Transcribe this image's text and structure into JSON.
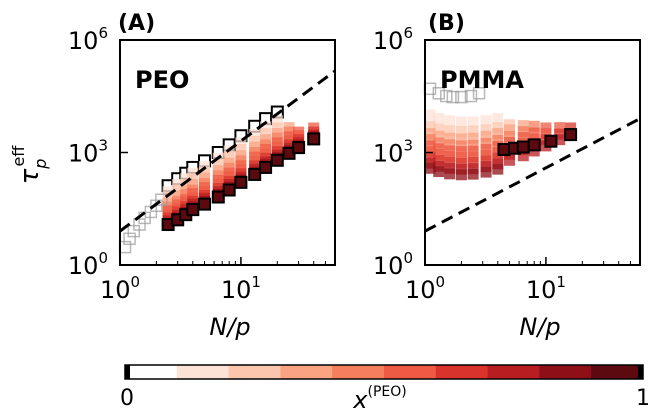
{
  "figure": {
    "colorbar": {
      "label_base": "x",
      "label_sup": "(PEO)",
      "tick_min": "0",
      "tick_max": "1",
      "colors": [
        "#ffffff",
        "#fde2d6",
        "#fcc6ae",
        "#f9a383",
        "#f57e5e",
        "#ee5a43",
        "#d8342b",
        "#b81d22",
        "#8e0f17",
        "#5c0a10"
      ]
    },
    "axis_common": {
      "xlabel_base": "N/p",
      "ylabel_base": "τ",
      "ylabel_sub": "p",
      "ylabel_sup": "eff"
    }
  },
  "chart_data": [
    {
      "type": "scatter",
      "panel": "(A)",
      "title": "PEO",
      "xlabel": "N/p",
      "ylabel": "τ_p^eff",
      "xscale": "log",
      "yscale": "log",
      "xlim": [
        1,
        60
      ],
      "ylim": [
        1,
        1000000
      ],
      "xticks": [
        {
          "value": 1,
          "base": "10",
          "exp": "0"
        },
        {
          "value": 10,
          "base": "10",
          "exp": "1"
        }
      ],
      "yticks": [
        {
          "value": 1,
          "base": "10",
          "exp": "0"
        },
        {
          "value": 1000,
          "base": "10",
          "exp": "3"
        },
        {
          "value": 1000000,
          "base": "10",
          "exp": "6"
        }
      ],
      "reference_line": {
        "style": "dashed",
        "points": [
          [
            1,
            8
          ],
          [
            60,
            150000
          ]
        ]
      },
      "series": [
        {
          "name": "x(PEO)=0.0",
          "x_PEO": 0.0,
          "outlined": true,
          "x": [
            2.5,
            3,
            3.5,
            4,
            5,
            6.5,
            8,
            10,
            13,
            16,
            20
          ],
          "y": [
            130,
            200,
            280,
            400,
            600,
            1000,
            1600,
            2800,
            5000,
            8000,
            12000
          ]
        },
        {
          "name": "x(PEO)=0.1",
          "x_PEO": 0.1,
          "outlined": false,
          "x": [
            2.5,
            3,
            3.5,
            4,
            5,
            6.5,
            8,
            10,
            13,
            16,
            20
          ],
          "y": [
            90,
            140,
            200,
            280,
            420,
            700,
            1100,
            1800,
            3000,
            4800,
            7000
          ]
        },
        {
          "name": "x(PEO)=0.2",
          "x_PEO": 0.2,
          "outlined": false,
          "x": [
            2.5,
            3,
            3.5,
            4,
            5,
            6.5,
            8,
            10,
            13,
            16,
            20
          ],
          "y": [
            65,
            100,
            140,
            200,
            300,
            480,
            750,
            1200,
            2000,
            3200,
            4500
          ]
        },
        {
          "name": "x(PEO)=0.3",
          "x_PEO": 0.3,
          "outlined": false,
          "x": [
            2.5,
            3,
            3.5,
            4,
            5,
            6.5,
            8,
            10,
            13,
            16,
            20,
            25
          ],
          "y": [
            45,
            70,
            100,
            140,
            210,
            330,
            520,
            820,
            1400,
            2200,
            3200,
            4600
          ]
        },
        {
          "name": "x(PEO)=0.4",
          "x_PEO": 0.4,
          "outlined": false,
          "x": [
            2.5,
            3,
            3.5,
            4,
            5,
            6.5,
            8,
            10,
            13,
            16,
            20,
            25
          ],
          "y": [
            35,
            50,
            75,
            100,
            150,
            240,
            380,
            600,
            1000,
            1600,
            2400,
            3500
          ]
        },
        {
          "name": "x(PEO)=0.5",
          "x_PEO": 0.5,
          "outlined": false,
          "x": [
            2.5,
            3,
            3.5,
            4,
            5,
            6.5,
            8,
            10,
            13,
            16,
            20,
            25,
            30
          ],
          "y": [
            28,
            40,
            55,
            80,
            115,
            180,
            280,
            440,
            750,
            1200,
            1800,
            2600,
            3500
          ]
        },
        {
          "name": "x(PEO)=0.6",
          "x_PEO": 0.6,
          "outlined": false,
          "x": [
            2.5,
            3,
            3.5,
            4,
            5,
            6.5,
            8,
            10,
            13,
            16,
            20,
            25,
            30,
            40
          ],
          "y": [
            22,
            32,
            45,
            62,
            90,
            140,
            220,
            340,
            560,
            900,
            1350,
            2000,
            2800,
            4500
          ]
        },
        {
          "name": "x(PEO)=0.7",
          "x_PEO": 0.7,
          "outlined": false,
          "x": [
            2.5,
            3,
            3.5,
            4,
            5,
            6.5,
            8,
            10,
            13,
            16,
            20,
            25,
            30,
            40
          ],
          "y": [
            18,
            26,
            36,
            50,
            72,
            110,
            170,
            270,
            440,
            700,
            1050,
            1600,
            2200,
            3500
          ]
        },
        {
          "name": "x(PEO)=0.8",
          "x_PEO": 0.8,
          "outlined": false,
          "x": [
            2.5,
            3,
            3.5,
            4,
            5,
            6.5,
            8,
            10,
            13,
            16,
            20,
            25,
            30,
            40
          ],
          "y": [
            15,
            21,
            30,
            42,
            60,
            90,
            140,
            220,
            360,
            560,
            850,
            1300,
            1800,
            2900
          ]
        },
        {
          "name": "x(PEO)=0.9",
          "x_PEO": 0.9,
          "outlined": false,
          "x": [
            2.5,
            3,
            3.5,
            4,
            5,
            6.5,
            8,
            10,
            13,
            16,
            20,
            25,
            30,
            40
          ],
          "y": [
            13,
            18,
            25,
            35,
            50,
            76,
            118,
            185,
            300,
            470,
            720,
            1100,
            1550,
            2600
          ]
        },
        {
          "name": "x(PEO)=1.0",
          "x_PEO": 1.0,
          "outlined": true,
          "x": [
            2.5,
            3,
            3.5,
            4,
            5,
            6.5,
            8,
            10,
            13,
            16,
            20,
            25,
            30,
            40
          ],
          "y": [
            12,
            16,
            22,
            30,
            42,
            65,
            100,
            160,
            260,
            400,
            620,
            950,
            1350,
            2300
          ]
        },
        {
          "name": "short chains (gray)",
          "x_PEO": null,
          "outlined": true,
          "gray": true,
          "x": [
            1.1,
            1.2,
            1.3,
            1.45,
            1.6,
            1.8,
            2.0,
            2.2
          ],
          "y": [
            3,
            5,
            8,
            12,
            18,
            26,
            38,
            55
          ]
        }
      ]
    },
    {
      "type": "scatter",
      "panel": "(B)",
      "title": "PMMA",
      "xlabel": "N/p",
      "ylabel": "",
      "xscale": "log",
      "yscale": "log",
      "xlim": [
        1,
        60
      ],
      "ylim": [
        1,
        1000000
      ],
      "xticks": [
        {
          "value": 1,
          "base": "10",
          "exp": "0"
        },
        {
          "value": 10,
          "base": "10",
          "exp": "1"
        }
      ],
      "yticks": [
        {
          "value": 1,
          "base": "10",
          "exp": "0"
        },
        {
          "value": 1000,
          "base": "10",
          "exp": "3"
        },
        {
          "value": 1000000,
          "base": "10",
          "exp": "6"
        }
      ],
      "reference_line": {
        "style": "dashed",
        "points": [
          [
            1,
            8
          ],
          [
            60,
            8000
          ]
        ]
      },
      "series": [
        {
          "name": "x(PEO)=0.0",
          "x_PEO": 0.0,
          "outlined": true,
          "gray": true,
          "x": [
            1.1,
            1.3,
            1.5,
            1.7,
            2.0,
            2.4,
            2.8
          ],
          "y": [
            50000,
            38000,
            32000,
            30000,
            30000,
            32000,
            38000
          ]
        },
        {
          "name": "x(PEO)=0.1",
          "x_PEO": 0.1,
          "outlined": false,
          "x": [
            1.1,
            1.3,
            1.6,
            2.0,
            2.5,
            3.2,
            4.0
          ],
          "y": [
            10000,
            8000,
            7000,
            6500,
            6500,
            7000,
            8000
          ]
        },
        {
          "name": "x(PEO)=0.2",
          "x_PEO": 0.2,
          "outlined": false,
          "x": [
            1.1,
            1.3,
            1.6,
            2.0,
            2.5,
            3.2,
            4.0,
            5.0
          ],
          "y": [
            5000,
            4200,
            3800,
            3600,
            3700,
            4000,
            4600,
            5500
          ]
        },
        {
          "name": "x(PEO)=0.3",
          "x_PEO": 0.3,
          "outlined": false,
          "x": [
            1.1,
            1.3,
            1.6,
            2.0,
            2.5,
            3.2,
            4.0,
            5.0,
            6.5
          ],
          "y": [
            3200,
            2700,
            2400,
            2300,
            2400,
            2700,
            3200,
            4000,
            5200
          ]
        },
        {
          "name": "x(PEO)=0.4",
          "x_PEO": 0.4,
          "outlined": false,
          "x": [
            1.1,
            1.3,
            1.6,
            2.0,
            2.5,
            3.2,
            4.0,
            5.0,
            6.5,
            8.0
          ],
          "y": [
            2200,
            1800,
            1600,
            1500,
            1550,
            1750,
            2100,
            2700,
            3600,
            5000
          ]
        },
        {
          "name": "x(PEO)=0.5",
          "x_PEO": 0.5,
          "outlined": false,
          "x": [
            1.1,
            1.3,
            1.6,
            2.0,
            2.5,
            3.2,
            4.0,
            5.0,
            6.5,
            8.0,
            10
          ],
          "y": [
            1500,
            1250,
            1100,
            1050,
            1080,
            1200,
            1450,
            1850,
            2500,
            3300,
            4500
          ]
        },
        {
          "name": "x(PEO)=0.6",
          "x_PEO": 0.6,
          "outlined": false,
          "x": [
            1.1,
            1.3,
            1.6,
            2.0,
            2.5,
            3.2,
            4.0,
            5.0,
            6.5,
            8.0,
            10,
            13
          ],
          "y": [
            1050,
            880,
            780,
            740,
            760,
            850,
            1000,
            1300,
            1750,
            2300,
            3200,
            4600
          ]
        },
        {
          "name": "x(PEO)=0.7",
          "x_PEO": 0.7,
          "outlined": false,
          "x": [
            1.1,
            1.3,
            1.6,
            2.0,
            2.5,
            3.2,
            4.0,
            5.0,
            6.5,
            8.0,
            10,
            13,
            16
          ],
          "y": [
            750,
            620,
            550,
            520,
            540,
            600,
            720,
            900,
            1200,
            1600,
            2200,
            3100,
            4500
          ]
        },
        {
          "name": "x(PEO)=0.8",
          "x_PEO": 0.8,
          "outlined": false,
          "x": [
            1.1,
            1.3,
            1.6,
            2.0,
            2.5,
            3.2,
            4.0,
            5.0,
            6.5,
            8.0,
            10,
            13,
            16
          ],
          "y": [
            520,
            430,
            380,
            360,
            370,
            420,
            500,
            620,
            820,
            1100,
            1500,
            2200,
            3200
          ]
        },
        {
          "name": "x(PEO)=0.9",
          "x_PEO": 0.9,
          "outlined": false,
          "x": [
            1.1,
            1.3,
            1.6,
            2.0,
            2.5,
            3.2,
            4.0
          ],
          "y": [
            380,
            310,
            270,
            255,
            265,
            300,
            360
          ]
        },
        {
          "name": "x(PEO)=1.0",
          "x_PEO": 1.0,
          "outlined": true,
          "x": [
            4.5,
            5.5,
            6.5,
            8.0,
            11,
            16
          ],
          "y": [
            1200,
            1300,
            1400,
            1600,
            2000,
            3000
          ]
        }
      ]
    }
  ]
}
